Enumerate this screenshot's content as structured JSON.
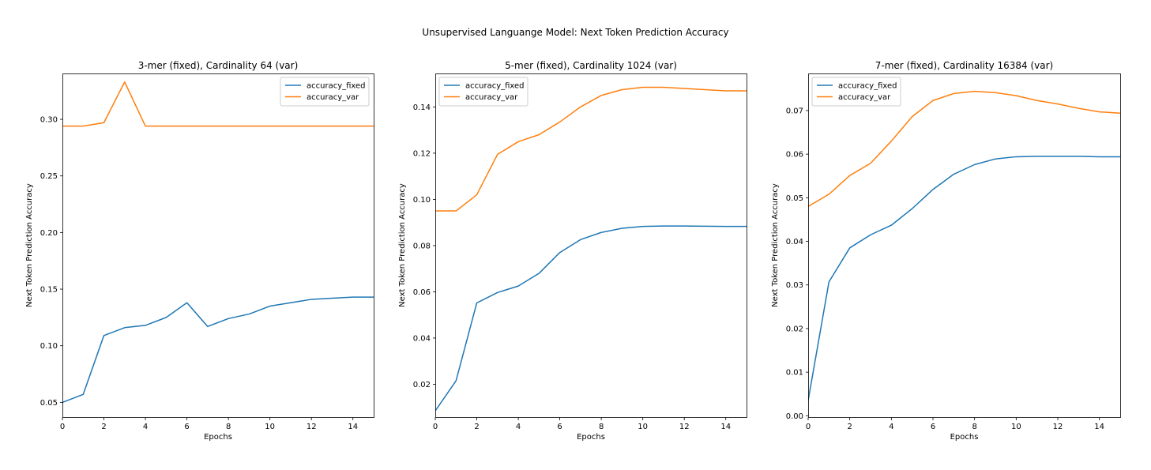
{
  "figure": {
    "suptitle": "Unsupervised Languange Model: Next Token Prediction Accuracy"
  },
  "colors": {
    "accuracy_fixed": "#1f77b4",
    "accuracy_var": "#ff7f0e"
  },
  "chart_data": [
    {
      "type": "line",
      "title": "3-mer (fixed), Cardinality 64 (var)",
      "xlabel": "Epochs",
      "ylabel": "Next Token Prediction Accuracy",
      "xlim": [
        0,
        15
      ],
      "ylim": [
        0.037,
        0.3405
      ],
      "xticks": [
        0,
        2,
        4,
        6,
        8,
        10,
        12,
        14
      ],
      "xtick_labels": [
        "0",
        "2",
        "4",
        "6",
        "8",
        "10",
        "12",
        "14"
      ],
      "yticks": [
        0.05,
        0.1,
        0.15,
        0.2,
        0.25,
        0.3
      ],
      "ytick_labels": [
        "0.05",
        "0.10",
        "0.15",
        "0.20",
        "0.25",
        "0.30"
      ],
      "legend_position": "top-right",
      "grid": false,
      "x": [
        0,
        1,
        2,
        3,
        4,
        5,
        6,
        7,
        8,
        9,
        10,
        11,
        12,
        13,
        14,
        15
      ],
      "series": [
        {
          "name": "accuracy_fixed",
          "values": [
            0.05,
            0.057,
            0.109,
            0.116,
            0.118,
            0.125,
            0.138,
            0.117,
            0.124,
            0.128,
            0.135,
            0.138,
            0.141,
            0.142,
            0.143,
            0.143
          ]
        },
        {
          "name": "accuracy_var",
          "values": [
            0.294,
            0.294,
            0.297,
            0.333,
            0.294,
            0.294,
            0.294,
            0.294,
            0.294,
            0.294,
            0.294,
            0.294,
            0.294,
            0.294,
            0.294,
            0.294
          ]
        }
      ]
    },
    {
      "type": "line",
      "title": "5-mer (fixed), Cardinality 1024 (var)",
      "xlabel": "Epochs",
      "ylabel": "Next Token Prediction Accuracy",
      "xlim": [
        0,
        15
      ],
      "ylim": [
        0.0058,
        0.1545
      ],
      "xticks": [
        0,
        2,
        4,
        6,
        8,
        10,
        12,
        14
      ],
      "xtick_labels": [
        "0",
        "2",
        "4",
        "6",
        "8",
        "10",
        "12",
        "14"
      ],
      "yticks": [
        0.02,
        0.04,
        0.06,
        0.08,
        0.1,
        0.12,
        0.14
      ],
      "ytick_labels": [
        "0.02",
        "0.04",
        "0.06",
        "0.08",
        "0.10",
        "0.12",
        "0.14"
      ],
      "legend_position": "top-left",
      "grid": false,
      "x": [
        0,
        1,
        2,
        3,
        4,
        5,
        6,
        7,
        8,
        9,
        10,
        11,
        12,
        13,
        14,
        15
      ],
      "series": [
        {
          "name": "accuracy_fixed",
          "values": [
            0.0085,
            0.0215,
            0.0552,
            0.0597,
            0.0625,
            0.068,
            0.077,
            0.0826,
            0.0857,
            0.0875,
            0.0883,
            0.0885,
            0.0885,
            0.0884,
            0.0883,
            0.0883
          ]
        },
        {
          "name": "accuracy_var",
          "values": [
            0.095,
            0.095,
            0.102,
            0.1195,
            0.125,
            0.128,
            0.1335,
            0.14,
            0.145,
            0.1475,
            0.1485,
            0.1485,
            0.148,
            0.1475,
            0.147,
            0.147
          ]
        }
      ]
    },
    {
      "type": "line",
      "title": "7-mer (fixed), Cardinality 16384 (var)",
      "xlabel": "Epochs",
      "ylabel": "Next Token Prediction Accuracy",
      "xlim": [
        0,
        15
      ],
      "ylim": [
        -0.0003,
        0.0785
      ],
      "xticks": [
        0,
        2,
        4,
        6,
        8,
        10,
        12,
        14
      ],
      "xtick_labels": [
        "0",
        "2",
        "4",
        "6",
        "8",
        "10",
        "12",
        "14"
      ],
      "yticks": [
        0.0,
        0.01,
        0.02,
        0.03,
        0.04,
        0.05,
        0.06,
        0.07
      ],
      "ytick_labels": [
        "0.00",
        "0.01",
        "0.02",
        "0.03",
        "0.04",
        "0.05",
        "0.06",
        "0.07"
      ],
      "legend_position": "top-left",
      "grid": false,
      "x": [
        0,
        1,
        2,
        3,
        4,
        5,
        6,
        7,
        8,
        9,
        10,
        11,
        12,
        13,
        14,
        15
      ],
      "series": [
        {
          "name": "accuracy_fixed",
          "values": [
            0.0035,
            0.0307,
            0.0385,
            0.0415,
            0.0437,
            0.0475,
            0.0519,
            0.0554,
            0.0576,
            0.0589,
            0.0594,
            0.0595,
            0.0595,
            0.0595,
            0.0594,
            0.0594
          ]
        },
        {
          "name": "accuracy_var",
          "values": [
            0.048,
            0.0508,
            0.0551,
            0.0579,
            0.063,
            0.0686,
            0.0723,
            0.0739,
            0.0744,
            0.0741,
            0.0734,
            0.0723,
            0.0715,
            0.0705,
            0.0697,
            0.0694
          ]
        }
      ]
    }
  ]
}
